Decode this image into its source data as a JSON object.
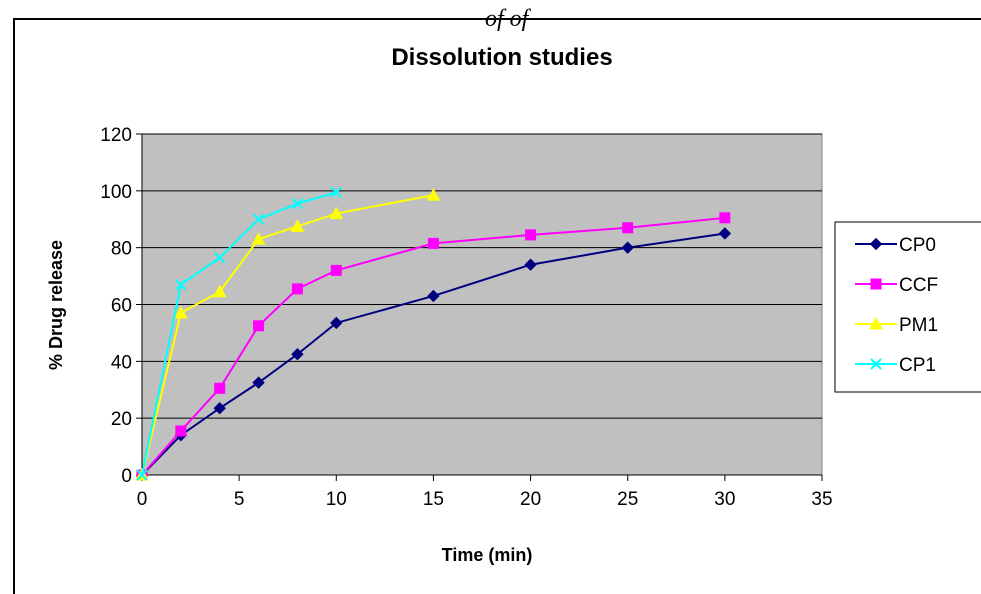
{
  "header_fragment": "of  of",
  "chart_data": {
    "type": "line",
    "title": "Dissolution studies",
    "xlabel": "Time (min)",
    "ylabel": "% Drug release",
    "xlim": [
      0,
      35
    ],
    "ylim": [
      0,
      120
    ],
    "xticks": [
      0,
      5,
      10,
      15,
      20,
      25,
      30,
      35
    ],
    "yticks": [
      0,
      20,
      40,
      60,
      80,
      100,
      120
    ],
    "grid": "horizontal",
    "legend_position": "right",
    "plot_background": "#c0c0c0",
    "series": [
      {
        "name": "CP0",
        "color": "#000080",
        "marker": "diamond",
        "x": [
          0,
          2,
          4,
          6,
          8,
          10,
          15,
          20,
          25,
          30
        ],
        "y": [
          0,
          14,
          23.5,
          32.5,
          42.5,
          53.5,
          63,
          74,
          80,
          85
        ]
      },
      {
        "name": "CCF",
        "color": "#ff00ff",
        "marker": "square",
        "x": [
          0,
          2,
          4,
          6,
          8,
          10,
          15,
          20,
          25,
          30
        ],
        "y": [
          0,
          15.5,
          30.5,
          52.5,
          65.5,
          72,
          81.5,
          84.5,
          87,
          90.5
        ]
      },
      {
        "name": "PM1",
        "color": "#ffff00",
        "marker": "triangle",
        "x": [
          0,
          2,
          4,
          6,
          8,
          10,
          15
        ],
        "y": [
          0,
          57,
          64.5,
          83,
          87.5,
          92,
          98.5
        ]
      },
      {
        "name": "CP1",
        "color": "#00ffff",
        "marker": "x",
        "x": [
          0,
          2,
          4,
          6,
          8,
          10
        ],
        "y": [
          0,
          67,
          76.5,
          90,
          95.5,
          99.5
        ]
      }
    ]
  }
}
